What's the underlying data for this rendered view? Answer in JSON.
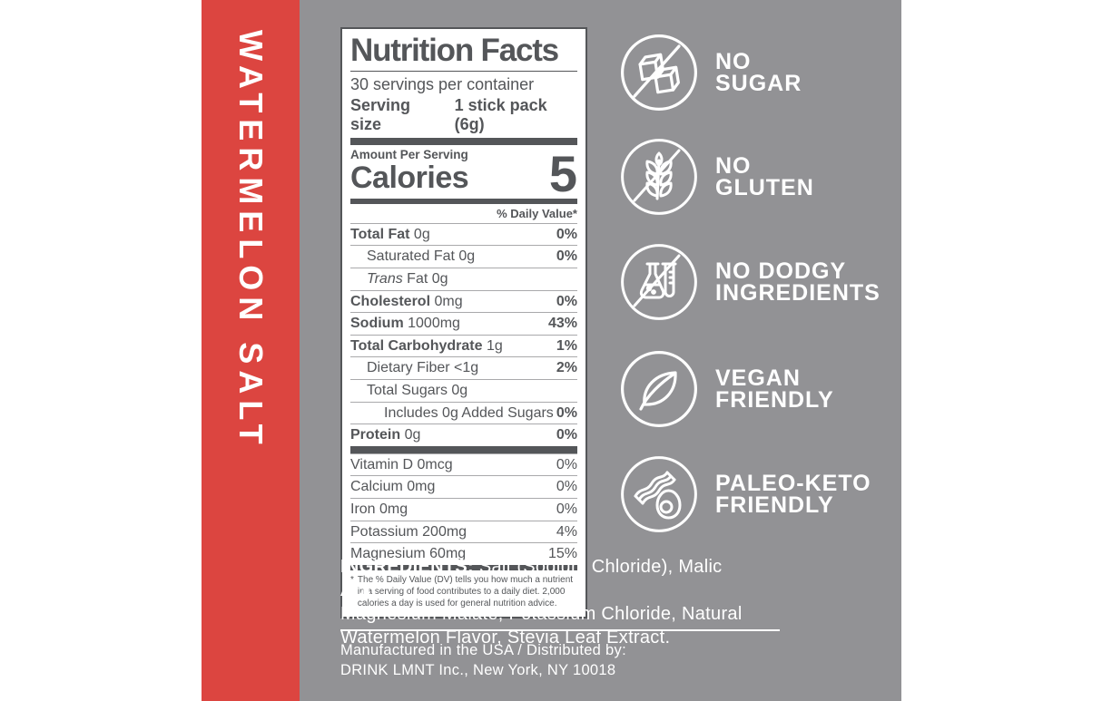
{
  "colors": {
    "red": "#dc4540",
    "gray": "#929295",
    "ink": "#545659",
    "thin": "#a9a9ab",
    "white": "#ffffff"
  },
  "banner": {
    "vertical_text": "WATERMELON SALT"
  },
  "nutrition": {
    "title": "Nutrition Facts",
    "servings_per_container": "30 servings per container",
    "serving_size_label": "Serving size",
    "serving_size_value": "1 stick pack (6g)",
    "amount_per_serving": "Amount Per Serving",
    "calories_label": "Calories",
    "calories_value": "5",
    "daily_value_header": "% Daily Value*",
    "rows": [
      {
        "b": "Total Fat",
        "r": "0g",
        "dv": "0%",
        "dvb": true,
        "ind": 0
      },
      {
        "r": "Saturated Fat 0g",
        "dv": "0%",
        "dvb": true,
        "ind": 1
      },
      {
        "i": "Trans",
        "r": "Fat 0g",
        "dv": "",
        "ind": 1
      },
      {
        "b": "Cholesterol",
        "r": "0mg",
        "dv": "0%",
        "dvb": true,
        "ind": 0
      },
      {
        "b": "Sodium",
        "r": "1000mg",
        "dv": "43%",
        "dvb": true,
        "ind": 0
      },
      {
        "b": "Total Carbohydrate",
        "r": "1g",
        "dv": "1%",
        "dvb": true,
        "ind": 0
      },
      {
        "r": "Dietary Fiber <1g",
        "dv": "2%",
        "dvb": true,
        "ind": 1
      },
      {
        "r": "Total Sugars 0g",
        "dv": "",
        "ind": 1
      },
      {
        "r": "Includes 0g Added Sugars",
        "dv": "0%",
        "dvb": true,
        "ind": 2
      },
      {
        "b": "Protein",
        "r": "0g",
        "dv": "0%",
        "dvb": true,
        "ind": 0
      }
    ],
    "micros": [
      {
        "r": "Vitamin D 0mcg",
        "dv": "0%",
        "ind": 0
      },
      {
        "r": "Calcium 0mg",
        "dv": "0%",
        "ind": 0
      },
      {
        "r": "Iron 0mg",
        "dv": "0%",
        "ind": 0
      },
      {
        "r": "Potassium 200mg",
        "dv": "4%",
        "ind": 0
      },
      {
        "r": "Magnesium 60mg",
        "dv": "15%",
        "ind": 0
      }
    ],
    "footnote_mark": "*",
    "footnote": "The % Daily Value (DV) tells you how much a nutrient in a serving of food contributes to a daily diet. 2,000 calories a day is used for general nutrition advice."
  },
  "badges": [
    {
      "icon": "no-sugar-icon",
      "line1": "NO",
      "line2": "SUGAR"
    },
    {
      "icon": "no-gluten-icon",
      "line1": "NO",
      "line2": "GLUTEN"
    },
    {
      "icon": "no-dodgy-ingredients-icon",
      "line1": "NO DODGY",
      "line2": "INGREDIENTS"
    },
    {
      "icon": "vegan-friendly-icon",
      "line1": "VEGAN",
      "line2": "FRIENDLY"
    },
    {
      "icon": "paleo-keto-friendly-icon",
      "line1": "PALEO-KETO",
      "line2": "FRIENDLY"
    }
  ],
  "ingredients": {
    "heading": "INGREDIENTS:",
    "line1_rest": "Salt (Sodium Chloride), Malic Acid,",
    "line2": "Magnesium Malate, Potassium Chloride, Natural",
    "line3": "Watermelon Flavor, Stevia Leaf Extract."
  },
  "distribution": {
    "line1": "Manufactured in the USA / Distributed by:",
    "line2": "DRINK LMNT Inc., New York, NY 10018"
  }
}
